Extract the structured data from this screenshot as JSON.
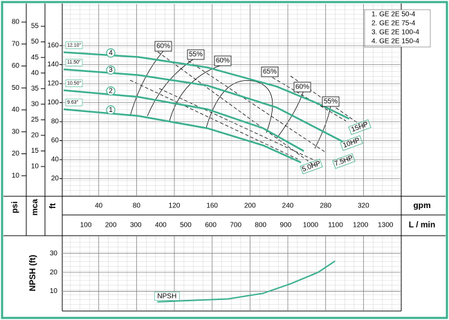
{
  "chart_data": [
    {
      "type": "line",
      "axis_labels": {
        "psi": "psi",
        "mca": "mca",
        "ft": "ft",
        "gpm": "gpm",
        "lmin": "L / min"
      },
      "xlim": [
        0,
        360
      ],
      "xticks": [
        40,
        80,
        120,
        160,
        200,
        240,
        280,
        320
      ],
      "x2lim": [
        0,
        1363
      ],
      "x2ticks": [
        100,
        200,
        300,
        400,
        500,
        600,
        700,
        800,
        900,
        1000,
        1100,
        1200,
        1300
      ],
      "ylim": [
        0,
        200
      ],
      "yticks": [
        20,
        40,
        60,
        80,
        100,
        120,
        140,
        160
      ],
      "y2lim": [
        0,
        86.6
      ],
      "y2ticks": [
        10,
        20,
        30,
        40,
        50,
        60,
        70,
        80
      ],
      "y3lim": [
        0,
        61
      ],
      "y3ticks": [
        10,
        15,
        20,
        25,
        30,
        35,
        40,
        45,
        50,
        55
      ],
      "grid": true,
      "series": [
        {
          "name": "1. GE 2E 50-4",
          "marker_label": "1",
          "trim": "9.63\"",
          "power": "5.0HP",
          "color": "#3aaf8e",
          "x": [
            3,
            82,
            155,
            214,
            254
          ],
          "values": [
            93,
            86,
            73,
            55,
            37
          ]
        },
        {
          "name": "2. GE 2E 75-4",
          "marker_label": "2",
          "trim": "10.50\"",
          "power": "7.5HP",
          "color": "#3aaf8e",
          "x": [
            3,
            82,
            155,
            214,
            257
          ],
          "values": [
            113,
            106,
            93,
            73,
            49
          ]
        },
        {
          "name": "3. GE 2E 100-4",
          "marker_label": "3",
          "trim": "11.50\"",
          "power": "10HP",
          "color": "#3aaf8e",
          "x": [
            3,
            82,
            155,
            228,
            265,
            298
          ],
          "values": [
            135,
            129,
            118,
            95,
            76,
            59
          ]
        },
        {
          "name": "4. GE 2E 150-4",
          "marker_label": "4",
          "trim": "12.10\"",
          "power": "15HP",
          "color": "#3aaf8e",
          "x": [
            3,
            82,
            155,
            228,
            272,
            305
          ],
          "values": [
            153,
            148,
            137,
            117,
            99,
            83
          ]
        }
      ],
      "efficiency_labels": [
        "60%",
        "55%",
        "60%",
        "65%",
        "60%",
        "55%"
      ]
    },
    {
      "type": "line",
      "ylabel": "NPSH (ft)",
      "xlim": [
        0,
        360
      ],
      "ylim": [
        0,
        39
      ],
      "yticks": [
        10,
        20,
        30
      ],
      "grid": true,
      "series": [
        {
          "name": "NPSH",
          "color": "#3aaf8e",
          "x": [
            102,
            177,
            214,
            243,
            272,
            290
          ],
          "values": [
            4.5,
            6,
            9,
            14,
            20,
            26
          ]
        }
      ]
    }
  ]
}
